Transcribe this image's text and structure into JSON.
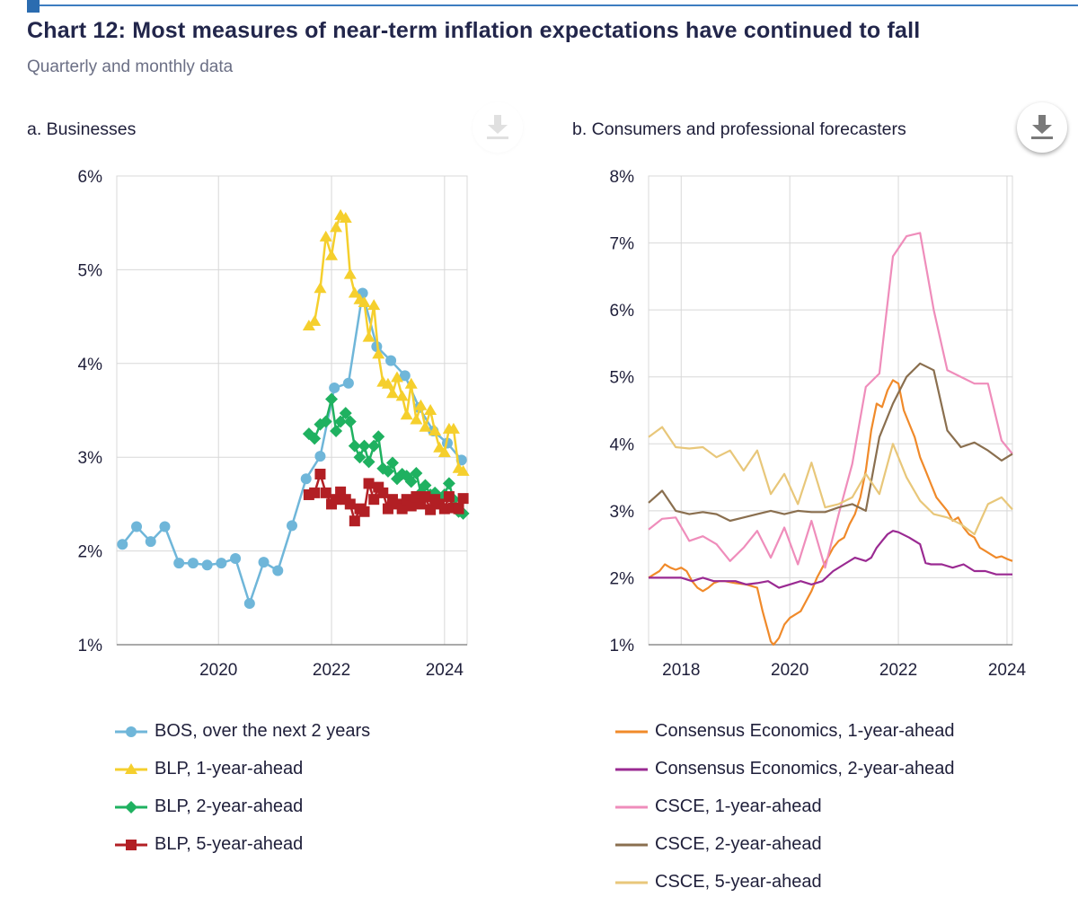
{
  "header": {
    "title": "Chart 12: Most measures of near-term inflation expectations have continued to fall",
    "subtitle": "Quarterly and monthly data"
  },
  "colors": {
    "bos": "#6fb6d9",
    "blp1": "#f5cf2d",
    "blp2": "#1fb160",
    "blp5": "#b21f24",
    "ce1": "#f08a2a",
    "ce2": "#9a2a92",
    "csce1": "#ef8dbb",
    "csce2": "#8a6f4f",
    "csce5": "#e8c77a",
    "grid": "#d8d8d8",
    "axis": "#777777"
  },
  "panels": {
    "a": {
      "title": "a. Businesses"
    },
    "b": {
      "title": "b. Consumers and professional forecasters"
    }
  },
  "chart_data": [
    {
      "id": "a",
      "type": "line",
      "title": "a. Businesses",
      "xlim": [
        2018.2,
        2024.4
      ],
      "ylim": [
        1,
        6
      ],
      "xticks": [
        2020,
        2022,
        2024
      ],
      "xtick_labels": [
        "2020",
        "2022",
        "2024"
      ],
      "yticks": [
        1,
        2,
        3,
        4,
        5,
        6
      ],
      "ytick_labels": [
        "1%",
        "2%",
        "3%",
        "4%",
        "5%",
        "6%"
      ],
      "series": [
        {
          "name": "BOS, over the next 2 years",
          "color": "#6fb6d9",
          "marker": "circle",
          "x": [
            2018.3,
            2018.55,
            2018.8,
            2019.05,
            2019.3,
            2019.55,
            2019.8,
            2020.05,
            2020.3,
            2020.55,
            2020.8,
            2021.05,
            2021.3,
            2021.55,
            2021.8,
            2022.05,
            2022.3,
            2022.55,
            2022.8,
            2023.05,
            2023.3,
            2023.55,
            2023.8,
            2024.05,
            2024.3
          ],
          "y": [
            2.07,
            2.26,
            2.1,
            2.26,
            1.87,
            1.87,
            1.85,
            1.87,
            1.92,
            1.44,
            1.88,
            1.79,
            2.27,
            2.77,
            3.01,
            3.74,
            3.79,
            4.75,
            4.18,
            4.03,
            3.87,
            3.53,
            3.28,
            3.15,
            2.97
          ]
        },
        {
          "name": "BLP, 1-year-ahead",
          "color": "#f5cf2d",
          "marker": "triangle",
          "x": [
            2021.6,
            2021.7,
            2021.8,
            2021.9,
            2022.0,
            2022.08,
            2022.16,
            2022.25,
            2022.33,
            2022.41,
            2022.5,
            2022.58,
            2022.66,
            2022.75,
            2022.83,
            2022.91,
            2023.0,
            2023.08,
            2023.16,
            2023.25,
            2023.33,
            2023.41,
            2023.5,
            2023.58,
            2023.66,
            2023.75,
            2023.83,
            2023.91,
            2024.0,
            2024.08,
            2024.16,
            2024.25,
            2024.33
          ],
          "y": [
            4.4,
            4.45,
            4.8,
            5.35,
            5.15,
            5.45,
            5.58,
            5.55,
            4.95,
            4.75,
            4.68,
            4.65,
            4.28,
            4.62,
            4.1,
            3.8,
            3.78,
            3.68,
            3.85,
            3.65,
            3.45,
            3.78,
            3.4,
            3.55,
            3.32,
            3.5,
            3.28,
            3.1,
            3.05,
            3.3,
            3.3,
            2.88,
            2.85
          ]
        },
        {
          "name": "BLP, 2-year-ahead",
          "color": "#1fb160",
          "marker": "diamond",
          "x": [
            2021.6,
            2021.7,
            2021.8,
            2021.9,
            2022.0,
            2022.08,
            2022.16,
            2022.25,
            2022.33,
            2022.41,
            2022.5,
            2022.58,
            2022.66,
            2022.75,
            2022.83,
            2022.91,
            2023.0,
            2023.08,
            2023.16,
            2023.25,
            2023.33,
            2023.41,
            2023.5,
            2023.58,
            2023.66,
            2023.75,
            2023.83,
            2023.91,
            2024.0,
            2024.08,
            2024.16,
            2024.25,
            2024.33
          ],
          "y": [
            3.25,
            3.2,
            3.35,
            3.38,
            3.62,
            3.28,
            3.38,
            3.47,
            3.38,
            3.12,
            3.0,
            3.12,
            2.95,
            3.12,
            3.22,
            2.88,
            2.85,
            2.94,
            2.77,
            2.82,
            2.8,
            2.74,
            2.83,
            2.62,
            2.7,
            2.6,
            2.62,
            2.55,
            2.6,
            2.72,
            2.55,
            2.42,
            2.4
          ]
        },
        {
          "name": "BLP, 5-year-ahead",
          "color": "#b21f24",
          "marker": "square",
          "x": [
            2021.6,
            2021.7,
            2021.8,
            2021.9,
            2022.0,
            2022.08,
            2022.16,
            2022.25,
            2022.33,
            2022.41,
            2022.5,
            2022.58,
            2022.66,
            2022.75,
            2022.83,
            2022.91,
            2023.0,
            2023.08,
            2023.16,
            2023.25,
            2023.33,
            2023.41,
            2023.5,
            2023.58,
            2023.66,
            2023.75,
            2023.83,
            2023.91,
            2024.0,
            2024.08,
            2024.16,
            2024.25,
            2024.33
          ],
          "y": [
            2.6,
            2.62,
            2.82,
            2.62,
            2.5,
            2.55,
            2.63,
            2.55,
            2.5,
            2.32,
            2.45,
            2.42,
            2.72,
            2.55,
            2.68,
            2.62,
            2.45,
            2.55,
            2.5,
            2.45,
            2.55,
            2.48,
            2.58,
            2.5,
            2.58,
            2.44,
            2.55,
            2.5,
            2.45,
            2.58,
            2.46,
            2.45,
            2.56
          ]
        }
      ]
    },
    {
      "id": "b",
      "type": "line",
      "title": "b. Consumers and professional forecasters",
      "xlim": [
        2017.4,
        2024.1
      ],
      "ylim": [
        1,
        8
      ],
      "xticks": [
        2018,
        2020,
        2022,
        2024
      ],
      "xtick_labels": [
        "2018",
        "2020",
        "2022",
        "2024"
      ],
      "yticks": [
        1,
        2,
        3,
        4,
        5,
        6,
        7,
        8
      ],
      "ytick_labels": [
        "1%",
        "2%",
        "3%",
        "4%",
        "5%",
        "6%",
        "7%",
        "8%"
      ],
      "series": [
        {
          "name": "Consensus Economics, 1-year-ahead",
          "color": "#f08a2a",
          "x": [
            2017.4,
            2017.5,
            2017.6,
            2017.7,
            2017.8,
            2017.9,
            2018.0,
            2018.1,
            2018.2,
            2018.3,
            2018.4,
            2018.5,
            2018.6,
            2018.7,
            2018.8,
            2019.0,
            2019.2,
            2019.4,
            2019.5,
            2019.6,
            2019.65,
            2019.7,
            2019.75,
            2019.8,
            2019.9,
            2020.0,
            2020.1,
            2020.2,
            2020.3,
            2020.4,
            2020.5,
            2020.6,
            2020.7,
            2020.8,
            2020.9,
            2021.0,
            2021.1,
            2021.2,
            2021.3,
            2021.4,
            2021.5,
            2021.6,
            2021.7,
            2021.8,
            2021.9,
            2022.0,
            2022.1,
            2022.2,
            2022.3,
            2022.4,
            2022.5,
            2022.6,
            2022.7,
            2022.8,
            2022.9,
            2023.0,
            2023.1,
            2023.2,
            2023.3,
            2023.4,
            2023.5,
            2023.6,
            2023.7,
            2023.8,
            2023.9,
            2024.0,
            2024.1
          ],
          "y": [
            2.0,
            2.05,
            2.1,
            2.2,
            2.15,
            2.12,
            2.15,
            2.1,
            1.95,
            1.85,
            1.8,
            1.85,
            1.92,
            1.95,
            1.95,
            1.92,
            1.9,
            1.85,
            1.5,
            1.2,
            1.05,
            1.0,
            1.05,
            1.1,
            1.3,
            1.4,
            1.45,
            1.5,
            1.65,
            1.8,
            2.0,
            2.15,
            2.3,
            2.45,
            2.55,
            2.6,
            2.8,
            2.95,
            3.2,
            3.6,
            4.2,
            4.6,
            4.55,
            4.8,
            4.95,
            4.9,
            4.5,
            4.3,
            4.1,
            3.8,
            3.6,
            3.4,
            3.2,
            3.1,
            3.0,
            2.85,
            2.9,
            2.75,
            2.65,
            2.6,
            2.45,
            2.4,
            2.35,
            2.3,
            2.32,
            2.28,
            2.25
          ]
        },
        {
          "name": "Consensus Economics, 2-year-ahead",
          "color": "#9a2a92",
          "x": [
            2017.4,
            2017.6,
            2017.8,
            2018.0,
            2018.2,
            2018.4,
            2018.6,
            2018.8,
            2019.0,
            2019.2,
            2019.4,
            2019.6,
            2019.8,
            2020.0,
            2020.2,
            2020.4,
            2020.6,
            2020.8,
            2021.0,
            2021.2,
            2021.4,
            2021.5,
            2021.6,
            2021.7,
            2021.8,
            2021.9,
            2022.0,
            2022.2,
            2022.4,
            2022.5,
            2022.6,
            2022.8,
            2023.0,
            2023.2,
            2023.4,
            2023.6,
            2023.8,
            2024.0,
            2024.1
          ],
          "y": [
            2.0,
            2.0,
            2.0,
            2.0,
            1.95,
            2.0,
            1.95,
            1.95,
            1.95,
            1.9,
            1.92,
            1.95,
            1.85,
            1.9,
            1.95,
            1.9,
            1.95,
            2.1,
            2.2,
            2.3,
            2.25,
            2.3,
            2.45,
            2.55,
            2.65,
            2.7,
            2.68,
            2.6,
            2.5,
            2.22,
            2.2,
            2.2,
            2.15,
            2.2,
            2.1,
            2.1,
            2.05,
            2.05,
            2.05
          ]
        },
        {
          "name": "CSCE, 1-year-ahead",
          "color": "#ef8dbb",
          "x": [
            2017.4,
            2017.65,
            2017.9,
            2018.15,
            2018.4,
            2018.65,
            2018.9,
            2019.15,
            2019.4,
            2019.65,
            2019.9,
            2020.15,
            2020.4,
            2020.65,
            2020.9,
            2021.15,
            2021.4,
            2021.65,
            2021.9,
            2022.15,
            2022.4,
            2022.65,
            2022.9,
            2023.15,
            2023.4,
            2023.65,
            2023.9,
            2024.1
          ],
          "y": [
            2.72,
            2.88,
            2.9,
            2.55,
            2.62,
            2.5,
            2.25,
            2.45,
            2.7,
            2.3,
            2.75,
            2.2,
            2.85,
            2.15,
            2.95,
            3.7,
            4.85,
            5.05,
            6.8,
            7.1,
            7.15,
            6.0,
            5.1,
            5.0,
            4.9,
            4.9,
            4.05,
            3.85
          ]
        },
        {
          "name": "CSCE, 2-year-ahead",
          "color": "#8a6f4f",
          "x": [
            2017.4,
            2017.65,
            2017.9,
            2018.15,
            2018.4,
            2018.65,
            2018.9,
            2019.15,
            2019.4,
            2019.65,
            2019.9,
            2020.15,
            2020.4,
            2020.65,
            2020.9,
            2021.15,
            2021.4,
            2021.65,
            2021.9,
            2022.15,
            2022.4,
            2022.65,
            2022.9,
            2023.15,
            2023.4,
            2023.65,
            2023.9,
            2024.1
          ],
          "y": [
            3.12,
            3.3,
            3.0,
            2.95,
            2.98,
            2.95,
            2.85,
            2.9,
            2.95,
            3.0,
            2.95,
            3.0,
            2.98,
            2.98,
            3.05,
            3.1,
            3.0,
            4.1,
            4.6,
            5.0,
            5.2,
            5.1,
            4.2,
            3.95,
            4.02,
            3.9,
            3.75,
            3.85
          ]
        },
        {
          "name": "CSCE, 5-year-ahead",
          "color": "#e8c77a",
          "x": [
            2017.4,
            2017.65,
            2017.9,
            2018.15,
            2018.4,
            2018.65,
            2018.9,
            2019.15,
            2019.4,
            2019.65,
            2019.9,
            2020.15,
            2020.4,
            2020.65,
            2020.9,
            2021.15,
            2021.4,
            2021.65,
            2021.9,
            2022.15,
            2022.4,
            2022.65,
            2022.9,
            2023.15,
            2023.4,
            2023.65,
            2023.9,
            2024.1
          ],
          "y": [
            4.1,
            4.25,
            3.95,
            3.93,
            3.95,
            3.8,
            3.9,
            3.6,
            3.9,
            3.25,
            3.55,
            3.1,
            3.72,
            3.05,
            3.1,
            3.2,
            3.55,
            3.25,
            4.0,
            3.5,
            3.15,
            2.95,
            2.9,
            2.8,
            2.65,
            3.1,
            3.2,
            3.02
          ]
        }
      ]
    }
  ]
}
